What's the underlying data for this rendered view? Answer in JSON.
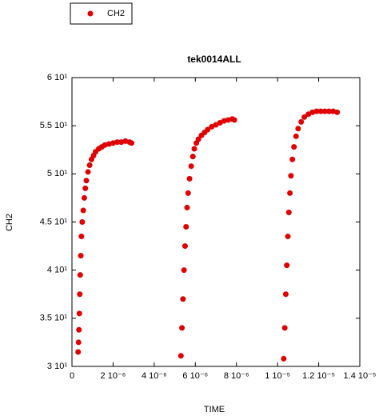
{
  "chart_data": {
    "type": "scatter",
    "title": "tek0014ALL",
    "xlabel": "TIME",
    "ylabel": "CH2",
    "x": [
      3e-07,
      3.2e-07,
      3.4e-07,
      3.6e-07,
      3.8e-07,
      4e-07,
      4.3e-07,
      4.6e-07,
      5e-07,
      5.5e-07,
      6e-07,
      6.5e-07,
      7e-07,
      7.8e-07,
      8.6e-07,
      9.5e-07,
      1.05e-06,
      1.15e-06,
      1.3e-06,
      1.45e-06,
      1.6e-06,
      1.8e-06,
      2e-06,
      2.2e-06,
      2.4e-06,
      2.6e-06,
      2.8e-06,
      2.9e-06,
      5.3e-06,
      5.35e-06,
      5.4e-06,
      5.45e-06,
      5.5e-06,
      5.55e-06,
      5.6e-06,
      5.65e-06,
      5.72e-06,
      5.8e-06,
      5.88e-06,
      5.95e-06,
      6.05e-06,
      6.15e-06,
      6.3e-06,
      6.45e-06,
      6.6e-06,
      6.8e-06,
      7e-06,
      7.2e-06,
      7.4e-06,
      7.6e-06,
      7.8e-06,
      7.9e-06,
      1.03e-05,
      1.035e-05,
      1.04e-05,
      1.045e-05,
      1.05e-05,
      1.055e-05,
      1.06e-05,
      1.065e-05,
      1.072e-05,
      1.08e-05,
      1.09e-05,
      1.1e-05,
      1.115e-05,
      1.13e-05,
      1.15e-05,
      1.17e-05,
      1.19e-05,
      1.21e-05,
      1.23e-05,
      1.25e-05,
      1.27e-05,
      1.29e-05
    ],
    "series": [
      {
        "name": "CH2",
        "color": "#e00000",
        "values": [
          31.5,
          32.5,
          33.8,
          35.5,
          37.5,
          39.5,
          41.5,
          43.5,
          45.0,
          46.2,
          47.5,
          48.5,
          49.3,
          50.2,
          50.9,
          51.5,
          51.9,
          52.3,
          52.6,
          52.8,
          53.0,
          53.1,
          53.2,
          53.3,
          53.3,
          53.4,
          53.3,
          53.2,
          31.1,
          34.0,
          37.0,
          40.0,
          42.5,
          44.5,
          46.5,
          48.0,
          49.5,
          50.8,
          51.8,
          52.6,
          53.2,
          53.6,
          54.0,
          54.3,
          54.6,
          54.9,
          55.1,
          55.3,
          55.5,
          55.6,
          55.7,
          55.6,
          30.8,
          34.0,
          37.5,
          40.5,
          43.5,
          46.0,
          48.0,
          49.8,
          51.5,
          52.8,
          53.9,
          54.7,
          55.4,
          55.9,
          56.2,
          56.4,
          56.5,
          56.5,
          56.5,
          56.5,
          56.5,
          56.4
        ]
      }
    ],
    "xlim": [
      0,
      1.4e-05
    ],
    "xticks": [
      0,
      {
        "value": 2e-06,
        "label": "2 10⁻⁶"
      },
      {
        "value": 4e-06,
        "label": "4 10⁻⁶"
      },
      {
        "value": 6e-06,
        "label": "6 10⁻⁶"
      },
      {
        "value": 8e-06,
        "label": "8 10⁻⁶"
      },
      {
        "value": 1e-05,
        "label": "1 10⁻⁵"
      },
      {
        "value": 1.2e-05,
        "label": "1.2 10⁻⁵"
      },
      {
        "value": 1.4e-05,
        "label": "1.4 10⁻⁵"
      }
    ],
    "ylim": [
      30,
      60
    ],
    "yticks": [
      {
        "value": 30,
        "label": "3 10¹"
      },
      {
        "value": 35,
        "label": "3.5 10¹"
      },
      {
        "value": 40,
        "label": "4 10¹"
      },
      {
        "value": 45,
        "label": "4.5 10¹"
      },
      {
        "value": 50,
        "label": "5 10¹"
      },
      {
        "value": 55,
        "label": "5.5 10¹"
      },
      {
        "value": 60,
        "label": "6 10¹"
      }
    ],
    "legend": "top-left"
  }
}
